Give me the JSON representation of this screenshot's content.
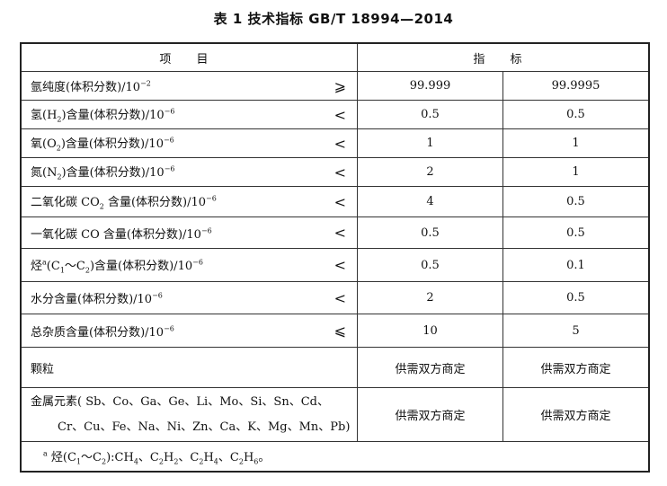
{
  "title": "表 1  技术指标  GB/T 18994—2014",
  "header": {
    "item": "项 目",
    "index": "指 标"
  },
  "rows": [
    {
      "label": [
        {
          "t": "氩纯度(体积分数)/10"
        },
        {
          "t": "−2",
          "sup": true
        }
      ],
      "sym": "⩾",
      "v1": "99.999",
      "v2": "99.9995"
    },
    {
      "label": [
        {
          "t": "氢(H"
        },
        {
          "t": "2",
          "sub": true
        },
        {
          "t": ")含量(体积分数)/10"
        },
        {
          "t": "−6",
          "sup": true
        }
      ],
      "sym": "<",
      "v1": "0.5",
      "v2": "0.5"
    },
    {
      "label": [
        {
          "t": "氧(O"
        },
        {
          "t": "2",
          "sub": true
        },
        {
          "t": ")含量(体积分数)/10"
        },
        {
          "t": "−6",
          "sup": true
        }
      ],
      "sym": "<",
      "v1": "1",
      "v2": "1"
    },
    {
      "label": [
        {
          "t": "氮(N"
        },
        {
          "t": "2",
          "sub": true
        },
        {
          "t": ")含量(体积分数)/10"
        },
        {
          "t": "−6",
          "sup": true
        }
      ],
      "sym": "<",
      "v1": "2",
      "v2": "1"
    },
    {
      "label": [
        {
          "t": "二氧化碳 CO"
        },
        {
          "t": "2",
          "sub": true
        },
        {
          "t": " 含量(体积分数)/10"
        },
        {
          "t": "−6",
          "sup": true
        }
      ],
      "sym": "<",
      "v1": "4",
      "v2": "0.5"
    },
    {
      "label": [
        {
          "t": "一氧化碳 CO 含量(体积分数)/10"
        },
        {
          "t": "−6",
          "sup": true
        }
      ],
      "sym": "<",
      "v1": "0.5",
      "v2": "0.5"
    },
    {
      "label": [
        {
          "t": "烃"
        },
        {
          "t": "a",
          "sup": true
        },
        {
          "t": "(C"
        },
        {
          "t": "1",
          "sub": true
        },
        {
          "t": "～C"
        },
        {
          "t": "2",
          "sub": true
        },
        {
          "t": ")含量(体积分数)/10"
        },
        {
          "t": "−6",
          "sup": true
        }
      ],
      "sym": "<",
      "v1": "0.5",
      "v2": "0.1"
    },
    {
      "label": [
        {
          "t": "水分含量(体积分数)/10"
        },
        {
          "t": "−6",
          "sup": true
        }
      ],
      "sym": "<",
      "v1": "2",
      "v2": "0.5"
    },
    {
      "label": [
        {
          "t": "总杂质含量(体积分数)/10"
        },
        {
          "t": "−6",
          "sup": true
        }
      ],
      "sym": "⩽",
      "v1": "10",
      "v2": "5"
    },
    {
      "label": [
        {
          "t": "颗粒"
        }
      ],
      "sym": "",
      "v1": "供需双方商定",
      "v2": "供需双方商定"
    }
  ],
  "metal": {
    "line1": "金属元素( Sb、Co、Ga、Ge、Li、Mo、Si、Sn、Cd、",
    "line2": "Cr、Cu、Fe、Na、Ni、Zn、Ca、K、Mg、Mn、Pb)",
    "v1": "供需双方商定",
    "v2": "供需双方商定"
  },
  "footnote": [
    {
      "t": "a",
      "sup": true
    },
    {
      "t": " 烃(C"
    },
    {
      "t": "1",
      "sub": true
    },
    {
      "t": "～C"
    },
    {
      "t": "2",
      "sub": true
    },
    {
      "t": "):CH"
    },
    {
      "t": "4",
      "sub": true
    },
    {
      "t": "、C"
    },
    {
      "t": "2",
      "sub": true
    },
    {
      "t": "H"
    },
    {
      "t": "2",
      "sub": true
    },
    {
      "t": "、C"
    },
    {
      "t": "2",
      "sub": true
    },
    {
      "t": "H"
    },
    {
      "t": "4",
      "sub": true
    },
    {
      "t": "、C"
    },
    {
      "t": "2",
      "sub": true
    },
    {
      "t": "H"
    },
    {
      "t": "6",
      "sub": true
    },
    {
      "t": "。"
    }
  ]
}
